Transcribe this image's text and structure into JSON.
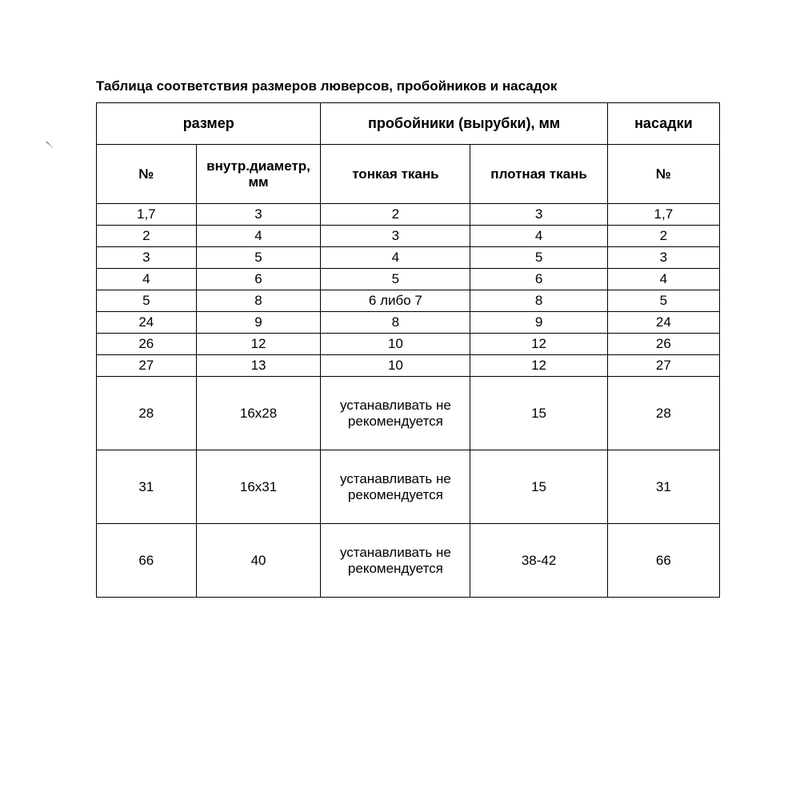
{
  "title": "Таблица соответствия размеров люверсов, пробойников и насадок",
  "group_headers": {
    "size": "размер",
    "punches": "пробойники (вырубки), мм",
    "attachments": "насадки"
  },
  "sub_headers": {
    "num": "№",
    "inner_diam": "внутр.диаметр, мм",
    "thin": "тонкая ткань",
    "thick": "плотная ткань",
    "att_num": "№"
  },
  "table": {
    "type": "table",
    "columns": [
      "num",
      "inner_diam",
      "thin_fabric",
      "thick_fabric",
      "attachment_num"
    ],
    "rows": [
      [
        "1,7",
        "3",
        "2",
        "3",
        "1,7"
      ],
      [
        "2",
        "4",
        "3",
        "4",
        "2"
      ],
      [
        "3",
        "5",
        "4",
        "5",
        "3"
      ],
      [
        "4",
        "6",
        "5",
        "6",
        "4"
      ],
      [
        "5",
        "8",
        "6 либо 7",
        "8",
        "5"
      ],
      [
        "24",
        "9",
        "8",
        "9",
        "24"
      ],
      [
        "26",
        "12",
        "10",
        "12",
        "26"
      ],
      [
        "27",
        "13",
        "10",
        "12",
        "27"
      ],
      [
        "28",
        "16x28",
        "устанавливать не рекомендуется",
        "15",
        "28"
      ],
      [
        "31",
        "16x31",
        "устанавливать не рекомендуется",
        "15",
        "31"
      ],
      [
        "66",
        "40",
        "устанавливать не рекомендуется",
        "38-42",
        "66"
      ]
    ],
    "tall_row_indices": [
      8,
      9,
      10
    ],
    "border_color": "#000000",
    "background_color": "#ffffff",
    "font_family": "Arial",
    "header_fontsize": 18,
    "cell_fontsize": 17,
    "text_color": "#000000"
  },
  "cursor_glyph": "৲"
}
